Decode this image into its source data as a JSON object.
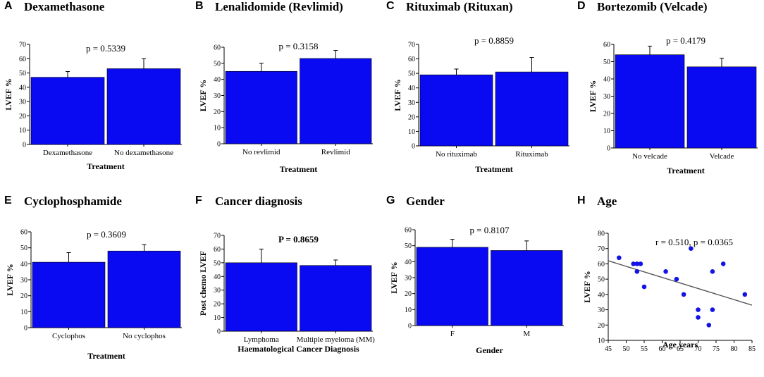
{
  "colors": {
    "bar": "#0a0af2",
    "point": "#1313e6",
    "line": "#555555",
    "axis": "#000000"
  },
  "chart_data": [
    {
      "panel": "A",
      "title": "Dexamethasone",
      "type": "bar",
      "categories": [
        "Dexamethasone",
        "No dexamethasone"
      ],
      "values": [
        47,
        53
      ],
      "errors": [
        4,
        7
      ],
      "ylim": [
        0,
        70
      ],
      "yticks": [
        0,
        10,
        20,
        30,
        40,
        50,
        60,
        70
      ],
      "ylabel": "LVEF %",
      "xlabel": "Treatment",
      "annotation": "p = 0.5339"
    },
    {
      "panel": "B",
      "title": "Lenalidomide (Revlimid)",
      "type": "bar",
      "categories": [
        "No revlimid",
        "Revlimid"
      ],
      "values": [
        45,
        53
      ],
      "errors": [
        5,
        5
      ],
      "ylim": [
        0,
        60
      ],
      "yticks": [
        0,
        10,
        20,
        30,
        40,
        50,
        60
      ],
      "ylabel": "LVEF %",
      "xlabel": "Treatment",
      "annotation": "p = 0.3158"
    },
    {
      "panel": "C",
      "title": "Rituximab (Rituxan)",
      "type": "bar",
      "categories": [
        "No rituximab",
        "Rituximab"
      ],
      "values": [
        49,
        51
      ],
      "errors": [
        4,
        10
      ],
      "ylim": [
        0,
        70
      ],
      "yticks": [
        0,
        10,
        20,
        30,
        40,
        50,
        60,
        70
      ],
      "ylabel": "LVEF %",
      "xlabel": "Treatment",
      "annotation": "p = 0.8859"
    },
    {
      "panel": "D",
      "title": "Bortezomib (Velcade)",
      "type": "bar",
      "categories": [
        "No velcade",
        "Velcade"
      ],
      "values": [
        54,
        47
      ],
      "errors": [
        5,
        5
      ],
      "ylim": [
        0,
        60
      ],
      "yticks": [
        0,
        10,
        20,
        30,
        40,
        50,
        60
      ],
      "ylabel": "LVEF %",
      "xlabel": "Treatment",
      "annotation": "p = 0.4179"
    },
    {
      "panel": "E",
      "title": "Cyclophosphamide",
      "type": "bar",
      "categories": [
        "Cyclophos",
        "No cyclophos"
      ],
      "values": [
        41,
        48
      ],
      "errors": [
        6,
        4
      ],
      "ylim": [
        0,
        60
      ],
      "yticks": [
        0,
        10,
        20,
        30,
        40,
        50,
        60
      ],
      "ylabel": "LVEF %",
      "xlabel": "Treatment",
      "annotation": "p = 0.3609"
    },
    {
      "panel": "F",
      "title": "Cancer diagnosis",
      "type": "bar",
      "categories": [
        "Lymphoma",
        "Multiple myeloma (MM)"
      ],
      "values": [
        50,
        48
      ],
      "errors": [
        10,
        4
      ],
      "ylim": [
        0,
        70
      ],
      "yticks": [
        0,
        10,
        20,
        30,
        40,
        50,
        60,
        70
      ],
      "ylabel": "Post chemo LVEF",
      "xlabel": "Haematological Cancer Diagnosis",
      "annotation": "P = 0.8659",
      "annotation_bold": true
    },
    {
      "panel": "G",
      "title": "Gender",
      "type": "bar",
      "categories": [
        "F",
        "M"
      ],
      "values": [
        49,
        47
      ],
      "errors": [
        5,
        6
      ],
      "ylim": [
        0,
        60
      ],
      "yticks": [
        0,
        10,
        20,
        30,
        40,
        50,
        60
      ],
      "ylabel": "LVEF %",
      "xlabel": "Gender",
      "annotation": "p = 0.8107"
    },
    {
      "panel": "H",
      "title": "Age",
      "type": "scatter",
      "x": [
        48,
        52,
        53,
        53,
        54,
        55,
        61,
        64,
        66,
        68,
        70,
        70,
        73,
        74,
        74,
        77,
        83
      ],
      "y": [
        64,
        60,
        55,
        60,
        60,
        45,
        55,
        50,
        40,
        70,
        25,
        30,
        20,
        55,
        30,
        60,
        40
      ],
      "trendline": {
        "x": [
          45,
          85
        ],
        "y": [
          62,
          33
        ]
      },
      "xlim": [
        45,
        85
      ],
      "xticks": [
        45,
        50,
        55,
        60,
        65,
        70,
        75,
        80,
        85
      ],
      "ylim": [
        10,
        80
      ],
      "yticks": [
        10,
        20,
        30,
        40,
        50,
        60,
        70,
        80
      ],
      "ylabel": "LVEF %",
      "xlabel": "Age years",
      "annotation": "r = 0.510, p = 0.0365"
    }
  ]
}
